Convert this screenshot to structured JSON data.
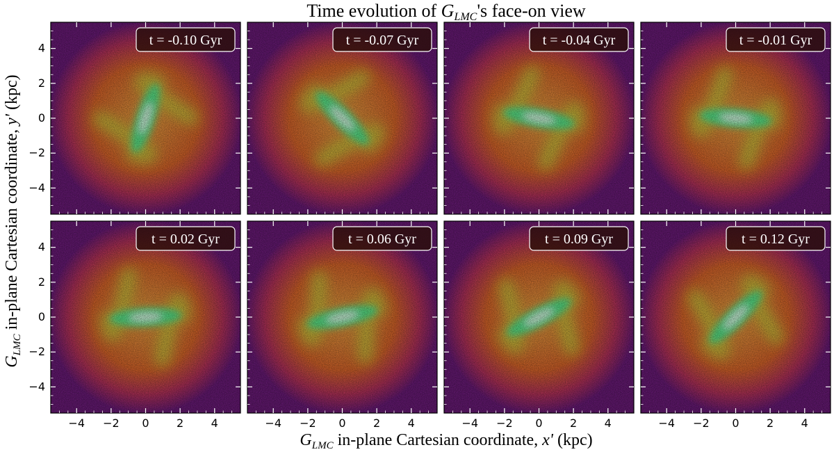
{
  "chart_data": {
    "type": "heatmap",
    "title_prefix": "Time evolution of ",
    "title_symbol": "G",
    "title_subscript": "LMC",
    "title_suffix": "'s face-on view",
    "xlabel_symbol": "G",
    "xlabel_subscript": "LMC",
    "xlabel_text": " in-plane Cartesian coordinate, ",
    "xlabel_var": "x'",
    "xlabel_unit": " (kpc)",
    "ylabel_symbol": "G",
    "ylabel_subscript": "LMC",
    "ylabel_text": " in-plane Cartesian coordinate, ",
    "ylabel_var": "y'",
    "ylabel_unit": " (kpc)",
    "xlim": [
      -5.5,
      5.5
    ],
    "ylim": [
      -5.5,
      5.5
    ],
    "xticks": [
      -4,
      -2,
      0,
      2,
      4
    ],
    "yticks": [
      -4,
      -2,
      0,
      2,
      4
    ],
    "xtick_labels": [
      "−4",
      "−2",
      "0",
      "2",
      "4"
    ],
    "ytick_labels": [
      "−4",
      "−2",
      "0",
      "2",
      "4"
    ],
    "rows": 2,
    "cols": 4,
    "colormap": [
      "#2a0a55",
      "#6a1a78",
      "#b5325a",
      "#d9652a",
      "#e3a040",
      "#c9c83a",
      "#57e88a",
      "#ffffff"
    ],
    "panels": [
      {
        "label": "t = -0.10 Gyr",
        "time_gyr": -0.1,
        "bar_angle_deg": 72
      },
      {
        "label": "t = -0.07 Gyr",
        "time_gyr": -0.07,
        "bar_angle_deg": 135
      },
      {
        "label": "t = -0.04 Gyr",
        "time_gyr": -0.04,
        "bar_angle_deg": 170
      },
      {
        "label": "t = -0.01 Gyr",
        "time_gyr": -0.01,
        "bar_angle_deg": 175
      },
      {
        "label": "t = 0.02 Gyr",
        "time_gyr": 0.02,
        "bar_angle_deg": 3
      },
      {
        "label": "t = 0.06 Gyr",
        "time_gyr": 0.06,
        "bar_angle_deg": 12
      },
      {
        "label": "t = 0.09 Gyr",
        "time_gyr": 0.09,
        "bar_angle_deg": 28
      },
      {
        "label": "t = 0.12 Gyr",
        "time_gyr": 0.12,
        "bar_angle_deg": 45
      }
    ]
  }
}
